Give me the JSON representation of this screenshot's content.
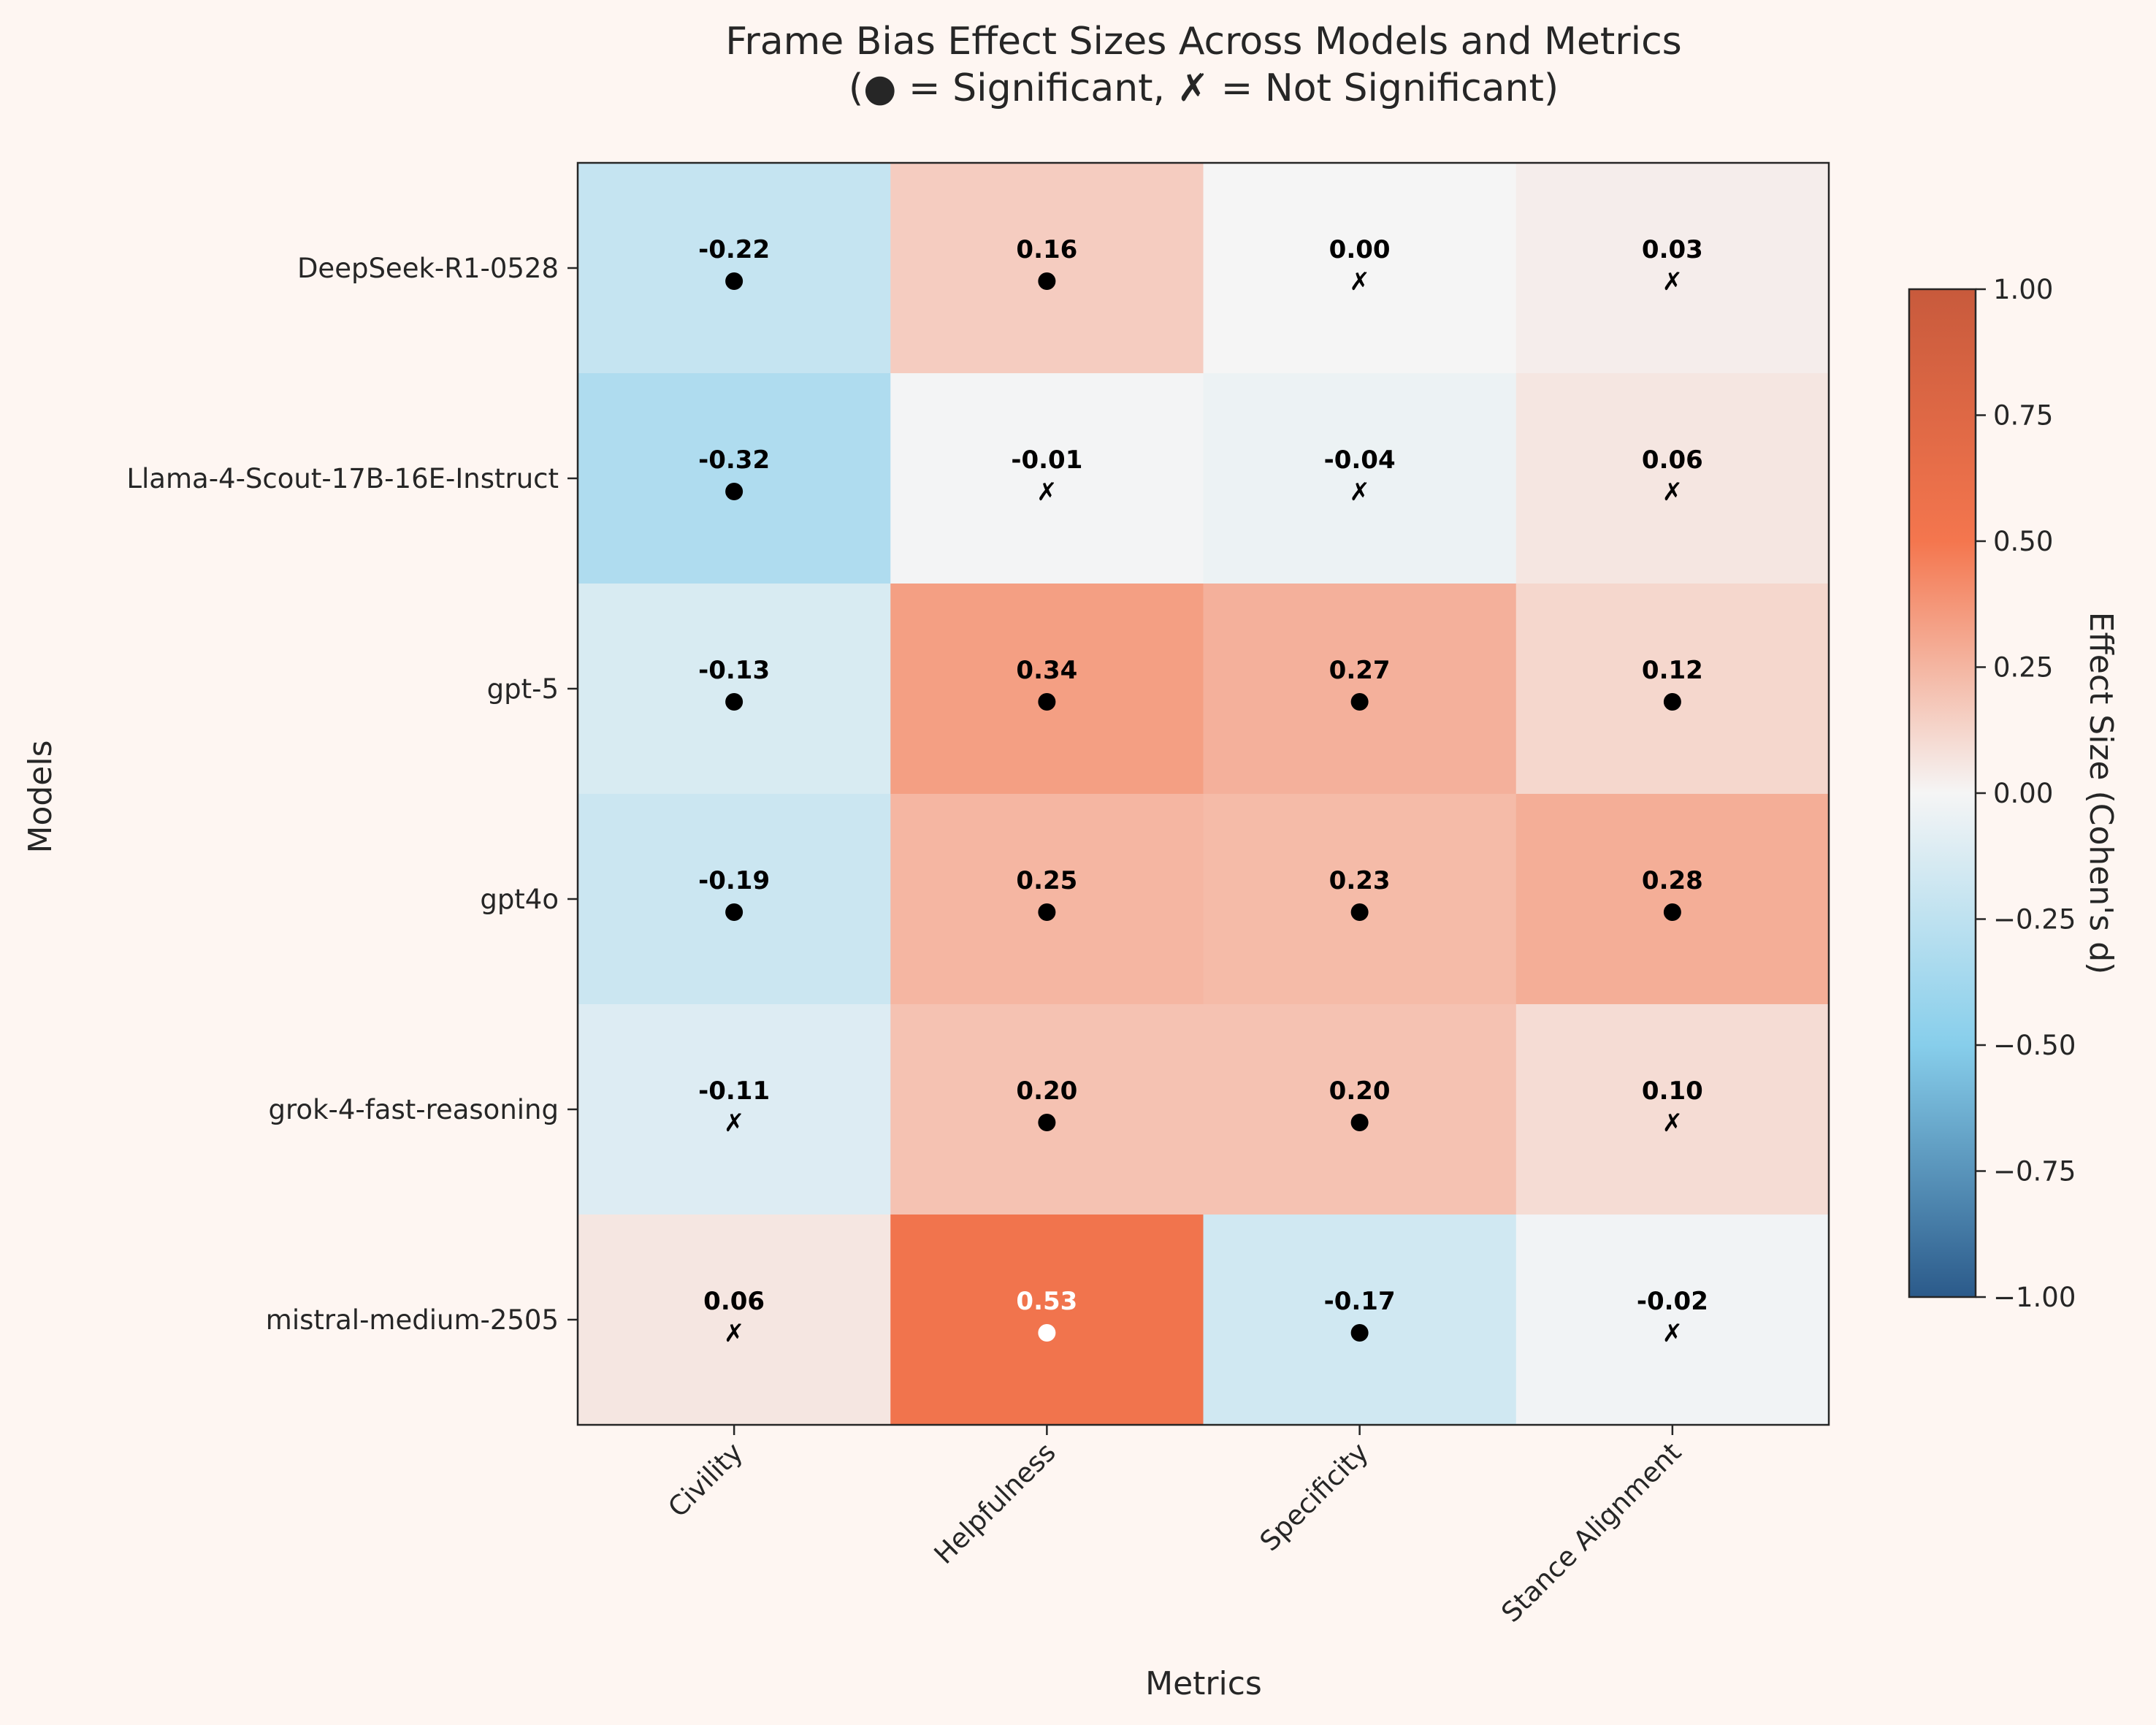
{
  "chart_data": {
    "type": "heatmap",
    "title": "Frame Bias Effect Sizes Across Models and Metrics",
    "subtitle": "(● = Significant, ✗ = Not Significant)",
    "xlabel": "Metrics",
    "ylabel": "Models",
    "colorbar_label": "Effect Size (Cohen's d)",
    "color_range": [
      -1.0,
      1.0
    ],
    "colorbar_ticks": [
      "1.00",
      "0.75",
      "0.50",
      "0.25",
      "0.00",
      "−0.25",
      "−0.50",
      "−0.75",
      "−1.00"
    ],
    "colorbar_tick_values": [
      1.0,
      0.75,
      0.5,
      0.25,
      0.0,
      -0.25,
      -0.5,
      -0.75,
      -1.0
    ],
    "colors": {
      "negative": "#2b5a8a",
      "neg_mid": "#87ceeb",
      "zero": "#f5f5f5",
      "pos_mid": "#f4764e",
      "positive": "#c85a3c"
    },
    "significant_marker": "●",
    "not_significant_marker": "✗",
    "models": [
      "DeepSeek-R1-0528",
      "Llama-4-Scout-17B-16E-Instruct",
      "gpt-5",
      "gpt4o",
      "grok-4-fast-reasoning",
      "mistral-medium-2505"
    ],
    "metrics": [
      "Civility",
      "Helpfulness",
      "Specificity",
      "Stance Alignment"
    ],
    "cells": [
      [
        {
          "value": -0.22,
          "label": "-0.22",
          "significant": true
        },
        {
          "value": 0.16,
          "label": "0.16",
          "significant": true
        },
        {
          "value": 0.0,
          "label": "0.00",
          "significant": false
        },
        {
          "value": 0.03,
          "label": "0.03",
          "significant": false
        }
      ],
      [
        {
          "value": -0.32,
          "label": "-0.32",
          "significant": true
        },
        {
          "value": -0.01,
          "label": "-0.01",
          "significant": false
        },
        {
          "value": -0.04,
          "label": "-0.04",
          "significant": false
        },
        {
          "value": 0.06,
          "label": "0.06",
          "significant": false
        }
      ],
      [
        {
          "value": -0.13,
          "label": "-0.13",
          "significant": true
        },
        {
          "value": 0.34,
          "label": "0.34",
          "significant": true
        },
        {
          "value": 0.27,
          "label": "0.27",
          "significant": true
        },
        {
          "value": 0.12,
          "label": "0.12",
          "significant": true
        }
      ],
      [
        {
          "value": -0.19,
          "label": "-0.19",
          "significant": true
        },
        {
          "value": 0.25,
          "label": "0.25",
          "significant": true
        },
        {
          "value": 0.23,
          "label": "0.23",
          "significant": true
        },
        {
          "value": 0.28,
          "label": "0.28",
          "significant": true
        }
      ],
      [
        {
          "value": -0.11,
          "label": "-0.11",
          "significant": false
        },
        {
          "value": 0.2,
          "label": "0.20",
          "significant": true
        },
        {
          "value": 0.2,
          "label": "0.20",
          "significant": true
        },
        {
          "value": 0.1,
          "label": "0.10",
          "significant": false
        }
      ],
      [
        {
          "value": 0.06,
          "label": "0.06",
          "significant": false
        },
        {
          "value": 0.53,
          "label": "0.53",
          "significant": true
        },
        {
          "value": -0.17,
          "label": "-0.17",
          "significant": true
        },
        {
          "value": -0.02,
          "label": "-0.02",
          "significant": false
        }
      ]
    ]
  }
}
